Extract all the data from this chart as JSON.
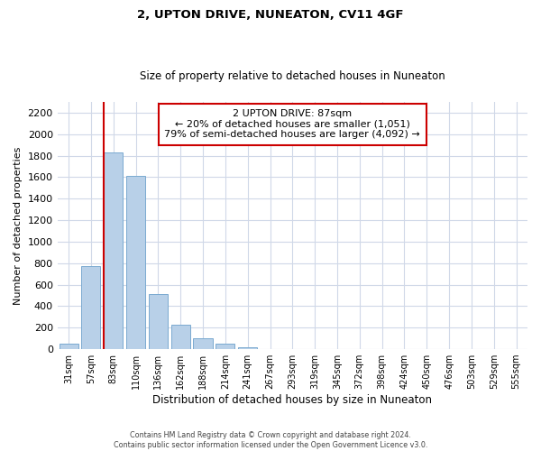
{
  "title": "2, UPTON DRIVE, NUNEATON, CV11 4GF",
  "subtitle": "Size of property relative to detached houses in Nuneaton",
  "xlabel": "Distribution of detached houses by size in Nuneaton",
  "ylabel": "Number of detached properties",
  "bar_labels": [
    "31sqm",
    "57sqm",
    "83sqm",
    "110sqm",
    "136sqm",
    "162sqm",
    "188sqm",
    "214sqm",
    "241sqm",
    "267sqm",
    "293sqm",
    "319sqm",
    "345sqm",
    "372sqm",
    "398sqm",
    "424sqm",
    "450sqm",
    "476sqm",
    "503sqm",
    "529sqm",
    "555sqm"
  ],
  "bar_values": [
    50,
    775,
    1830,
    1610,
    515,
    230,
    105,
    55,
    20,
    0,
    0,
    0,
    0,
    0,
    0,
    0,
    0,
    0,
    0,
    0,
    0
  ],
  "bar_color": "#b8d0e8",
  "bar_edge_color": "#7aaad0",
  "highlight_bar_index": 2,
  "highlight_color": "#cc0000",
  "ylim": [
    0,
    2300
  ],
  "yticks": [
    0,
    200,
    400,
    600,
    800,
    1000,
    1200,
    1400,
    1600,
    1800,
    2000,
    2200
  ],
  "annotation_title": "2 UPTON DRIVE: 87sqm",
  "annotation_line1": "← 20% of detached houses are smaller (1,051)",
  "annotation_line2": "79% of semi-detached houses are larger (4,092) →",
  "footer1": "Contains HM Land Registry data © Crown copyright and database right 2024.",
  "footer2": "Contains public sector information licensed under the Open Government Licence v3.0.",
  "bg_color": "#ffffff",
  "grid_color": "#d0d8e8"
}
